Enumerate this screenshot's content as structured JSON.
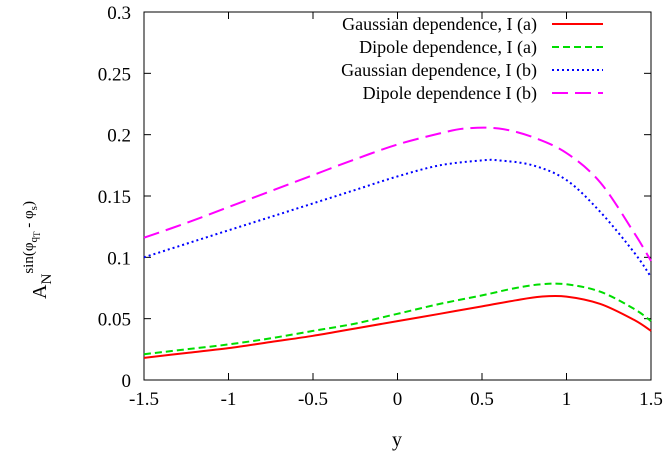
{
  "chart_data": {
    "type": "line",
    "xlabel": "y",
    "ylabel": {
      "base": "A",
      "subscript": "N",
      "superscript": "sin(φ",
      "q_sub": "q",
      "t_sub": "T",
      "middle": " - φ",
      "s_sub": "s",
      "end": ")"
    },
    "xlim": [
      -1.5,
      1.5
    ],
    "ylim": [
      0,
      0.3
    ],
    "xticks": [
      -1.5,
      -1,
      -0.5,
      0,
      0.5,
      1,
      1.5
    ],
    "xtick_labels": [
      "-1.5",
      "-1",
      "-0.5",
      "0",
      "0.5",
      "1",
      "1.5"
    ],
    "yticks": [
      0,
      0.05,
      0.1,
      0.15,
      0.2,
      0.25,
      0.3
    ],
    "ytick_labels": [
      "0",
      "0.05",
      "0.1",
      "0.15",
      "0.2",
      "0.25",
      "0.3"
    ],
    "grid": false,
    "legend_position": "top-right",
    "series": [
      {
        "name": "Gaussian dependence, I (a)",
        "color": "#ff0000",
        "dash": "solid",
        "x": [
          -1.5,
          -1.25,
          -1.0,
          -0.75,
          -0.5,
          -0.25,
          0.0,
          0.25,
          0.5,
          0.7,
          0.85,
          1.0,
          1.2,
          1.4,
          1.5
        ],
        "y": [
          0.018,
          0.022,
          0.026,
          0.031,
          0.036,
          0.042,
          0.048,
          0.054,
          0.06,
          0.065,
          0.068,
          0.068,
          0.062,
          0.049,
          0.04
        ]
      },
      {
        "name": "Dipole dependence, I (a)",
        "color": "#00dd00",
        "dash": "dashed",
        "x": [
          -1.5,
          -1.25,
          -1.0,
          -0.75,
          -0.5,
          -0.25,
          0.0,
          0.25,
          0.5,
          0.7,
          0.85,
          1.0,
          1.2,
          1.4,
          1.5
        ],
        "y": [
          0.021,
          0.025,
          0.029,
          0.034,
          0.04,
          0.046,
          0.054,
          0.062,
          0.069,
          0.075,
          0.078,
          0.078,
          0.072,
          0.058,
          0.048
        ]
      },
      {
        "name": "Gaussian dependence, I (b)",
        "color": "#0000ff",
        "dash": "dotted",
        "x": [
          -1.5,
          -1.25,
          -1.0,
          -0.75,
          -0.5,
          -0.25,
          0.0,
          0.25,
          0.5,
          0.6,
          0.8,
          1.0,
          1.2,
          1.4,
          1.5
        ],
        "y": [
          0.1,
          0.111,
          0.122,
          0.133,
          0.144,
          0.155,
          0.166,
          0.175,
          0.179,
          0.179,
          0.175,
          0.163,
          0.137,
          0.104,
          0.084
        ]
      },
      {
        "name": "Dipole dependence I (b)",
        "color": "#ff00ff",
        "dash": "longdash",
        "x": [
          -1.5,
          -1.25,
          -1.0,
          -0.75,
          -0.5,
          -0.25,
          0.0,
          0.25,
          0.4,
          0.6,
          0.8,
          1.0,
          1.2,
          1.4,
          1.5
        ],
        "y": [
          0.116,
          0.128,
          0.141,
          0.154,
          0.167,
          0.18,
          0.192,
          0.201,
          0.205,
          0.205,
          0.198,
          0.185,
          0.161,
          0.12,
          0.097
        ]
      }
    ]
  }
}
